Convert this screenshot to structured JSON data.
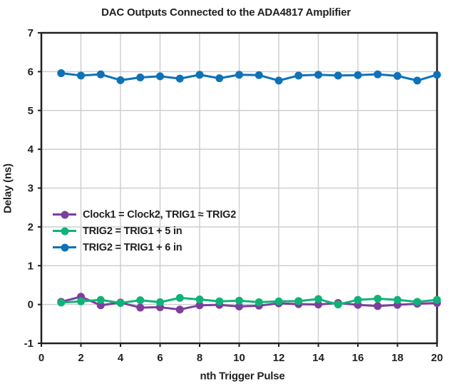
{
  "chart_data": {
    "type": "line",
    "title": "DAC Outputs Connected to the ADA4817 Amplifier",
    "xlabel": "nth Trigger Pulse",
    "ylabel": "Delay (ns)",
    "xlim": [
      0,
      20
    ],
    "ylim": [
      -1,
      7
    ],
    "xticks": [
      0,
      2,
      4,
      6,
      8,
      10,
      12,
      14,
      16,
      18,
      20
    ],
    "yticks": [
      -1,
      0,
      1,
      2,
      3,
      4,
      5,
      6,
      7
    ],
    "grid": true,
    "legend_position": "inside-left-middle",
    "x": [
      1,
      2,
      3,
      4,
      5,
      6,
      7,
      8,
      9,
      10,
      11,
      12,
      13,
      14,
      15,
      16,
      17,
      18,
      19,
      20
    ],
    "series": [
      {
        "name": "Clock1 = Clock2, TRIG1 ≈ TRIG2",
        "color": "#7d3f9d",
        "values": [
          0.07,
          0.2,
          -0.02,
          0.05,
          -0.08,
          -0.07,
          -0.13,
          -0.02,
          -0.01,
          -0.05,
          -0.03,
          0.03,
          0.01,
          0.0,
          0.04,
          -0.01,
          -0.04,
          -0.01,
          0.02,
          0.04
        ]
      },
      {
        "name": "TRIG2 = TRIG1 + 5 in",
        "color": "#10b377",
        "values": [
          0.05,
          0.08,
          0.12,
          0.04,
          0.11,
          0.06,
          0.17,
          0.13,
          0.08,
          0.1,
          0.06,
          0.08,
          0.09,
          0.14,
          0.0,
          0.12,
          0.15,
          0.12,
          0.07,
          0.12
        ]
      },
      {
        "name": "TRIG2 = TRIG1 + 6 in",
        "color": "#0e72b9",
        "values": [
          5.96,
          5.9,
          5.93,
          5.78,
          5.85,
          5.88,
          5.82,
          5.92,
          5.83,
          5.92,
          5.91,
          5.77,
          5.9,
          5.92,
          5.9,
          5.91,
          5.93,
          5.89,
          5.77,
          5.92
        ]
      }
    ],
    "style": {
      "grid_color": "#cdcfd1",
      "axis_color": "#231f20",
      "text_color": "#231f20",
      "background": "#ffffff"
    }
  }
}
